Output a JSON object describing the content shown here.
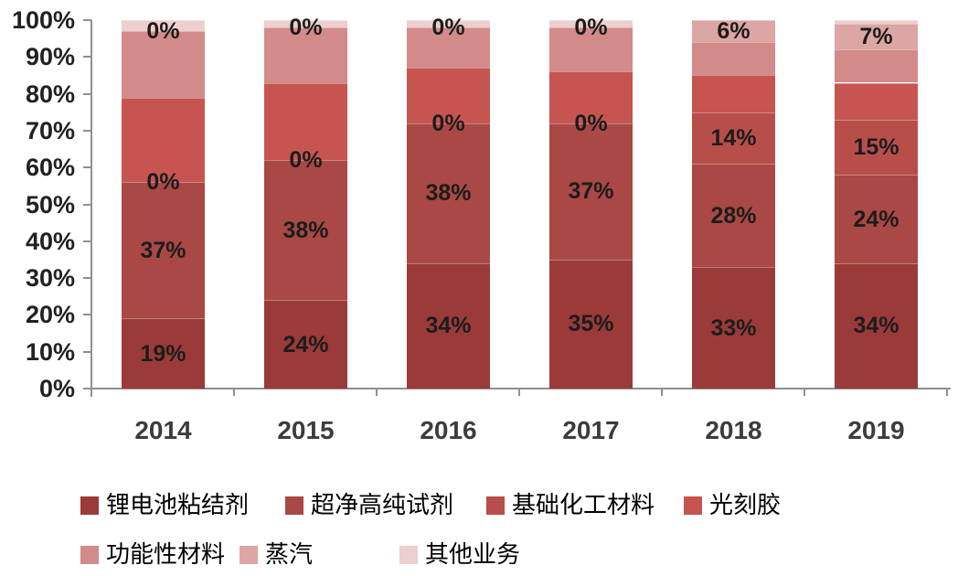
{
  "chart_data": {
    "type": "bar",
    "subtype": "stacked-100-percent",
    "title": "",
    "xlabel": "",
    "ylabel": "",
    "categories": [
      "2014",
      "2015",
      "2016",
      "2017",
      "2018",
      "2019"
    ],
    "series": [
      {
        "name": "锂电池粘结剂",
        "color": "#9A3B39",
        "values": [
          19,
          24,
          34,
          35,
          33,
          34
        ],
        "labels_shown": true
      },
      {
        "name": "超净高纯试剂",
        "color": "#A94845",
        "values": [
          37,
          38,
          38,
          37,
          28,
          24
        ],
        "labels_shown": true
      },
      {
        "name": "基础化工材料",
        "color": "#B84E4A",
        "values": [
          0,
          0,
          0,
          0,
          14,
          15
        ],
        "labels_shown": true
      },
      {
        "name": "光刻胶",
        "color": "#C65551",
        "values": [
          23,
          21,
          15,
          14,
          10,
          10
        ],
        "labels_shown": false
      },
      {
        "name": "功能性材料",
        "color": "#D28B89",
        "values": [
          18,
          15,
          11,
          12,
          9,
          9
        ],
        "labels_shown": false
      },
      {
        "name": "蒸汽",
        "color": "#DCA6A4",
        "values": [
          0,
          0,
          0,
          0,
          6,
          7
        ],
        "labels_shown": true
      },
      {
        "name": "其他业务",
        "color": "#ECCFCE",
        "values": [
          3,
          2,
          2,
          2,
          0,
          1
        ],
        "labels_shown": false
      }
    ],
    "value_label_suffix": "%",
    "y_ticks": [
      "0%",
      "10%",
      "20%",
      "30%",
      "40%",
      "50%",
      "60%",
      "70%",
      "80%",
      "90%",
      "100%"
    ],
    "ylim": [
      0,
      100
    ],
    "grid": false,
    "legend_position": "bottom",
    "axis_color": "#8F8F8F",
    "tick_label_color": "#212121",
    "category_label_color": "#3C3C3C",
    "value_label_color": "#1C1C1C"
  }
}
